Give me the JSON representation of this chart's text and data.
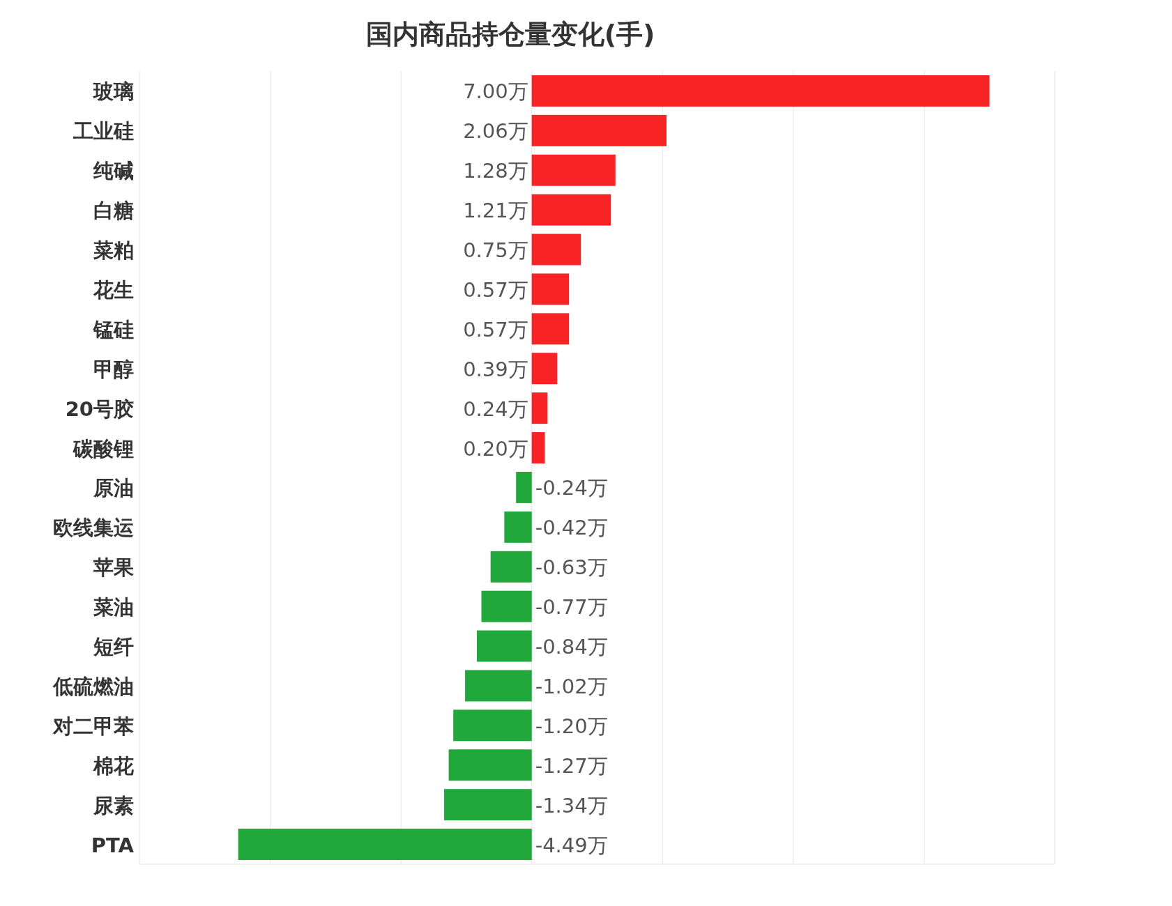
{
  "chart_data": {
    "type": "bar",
    "orientation": "horizontal",
    "title": "国内商品持仓量变化(手)",
    "categories": [
      "玻璃",
      "工业硅",
      "纯碱",
      "白糖",
      "菜粕",
      "花生",
      "锰硅",
      "甲醇",
      "20号胶",
      "碳酸锂",
      "原油",
      "欧线集运",
      "苹果",
      "菜油",
      "短纤",
      "低硫燃油",
      "对二甲苯",
      "棉花",
      "尿素",
      "PTA"
    ],
    "values": [
      7.0,
      2.06,
      1.28,
      1.21,
      0.75,
      0.57,
      0.57,
      0.39,
      0.24,
      0.2,
      -0.24,
      -0.42,
      -0.63,
      -0.77,
      -0.84,
      -1.02,
      -1.2,
      -1.27,
      -1.34,
      -4.49
    ],
    "colors": [
      "#f82325",
      "#f82325",
      "#f82325",
      "#f82325",
      "#f82325",
      "#f82325",
      "#f82325",
      "#f82325",
      "#f82325",
      "#f82325",
      "#20a83a",
      "#20a83a",
      "#20a83a",
      "#20a83a",
      "#20a83a",
      "#20a83a",
      "#20a83a",
      "#20a83a",
      "#20a83a",
      "#20a83a"
    ],
    "value_labels": [
      "7.00万",
      "2.06万",
      "1.28万",
      "1.21万",
      "0.75万",
      "0.57万",
      "0.57万",
      "0.39万",
      "0.24万",
      "0.20万",
      "-0.24万",
      "-0.42万",
      "-0.63万",
      "-0.77万",
      "-0.84万",
      "-1.02万",
      "-1.20万",
      "-1.27万",
      "-1.34万",
      "-4.49万"
    ],
    "xlim": [
      -6,
      8
    ],
    "xticks": [
      {
        "value": -6,
        "label": null
      },
      {
        "value": -4,
        "label": null
      },
      {
        "value": -2,
        "label": null
      },
      {
        "value": 0,
        "label": null
      },
      {
        "value": 2,
        "label": null
      },
      {
        "value": 4,
        "label": null
      },
      {
        "value": 6,
        "label": null
      },
      {
        "value": 8,
        "label": null
      }
    ],
    "grid": "x",
    "tick_labels": "y"
  }
}
